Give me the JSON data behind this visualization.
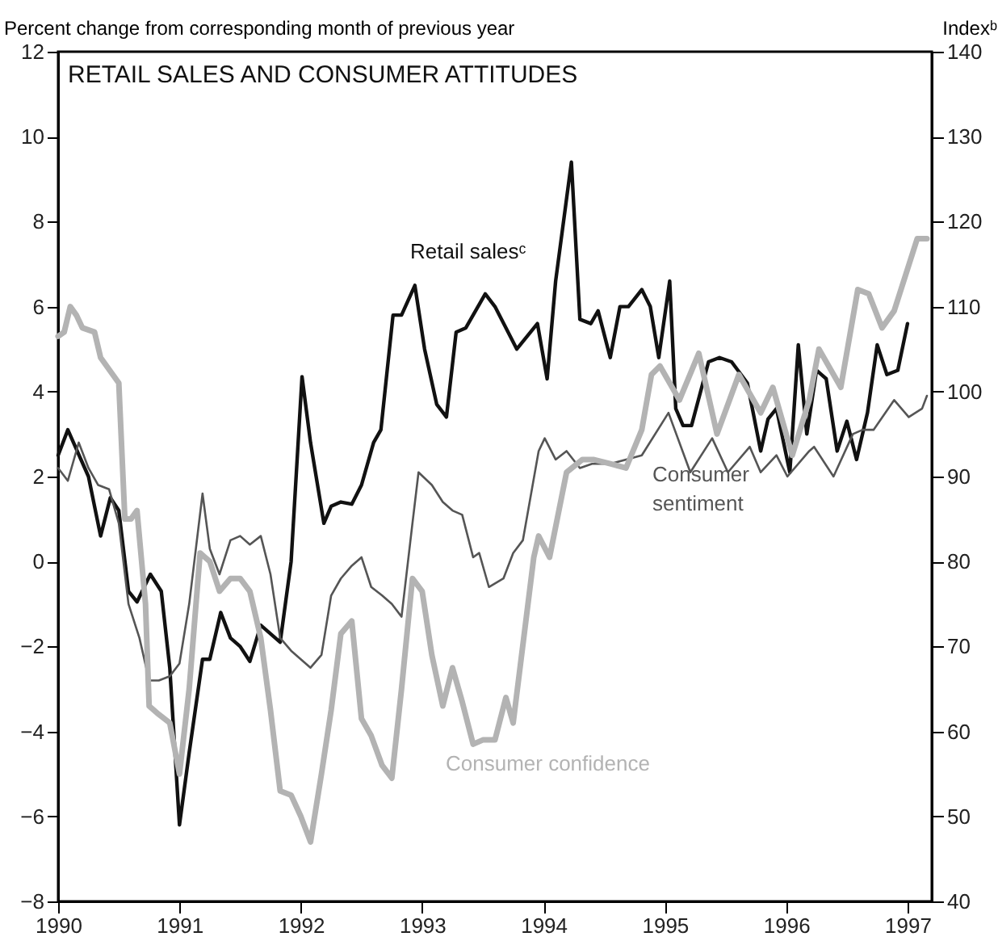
{
  "chart_data": {
    "type": "line",
    "title": "RETAIL SALES AND CONSUMER ATTITUDES",
    "ylabel": "Percent change from corresponding month of previous year",
    "y2label": "Indexᵇ",
    "xlim": [
      1990,
      1997.2
    ],
    "xticks": [
      1990,
      1991,
      1992,
      1993,
      1994,
      1995,
      1996,
      1997
    ],
    "ylim": [
      -8,
      12
    ],
    "yticks": [
      -8,
      -6,
      -4,
      -2,
      0,
      2,
      4,
      6,
      8,
      10,
      12
    ],
    "y2lim": [
      40,
      140
    ],
    "y2ticks": [
      40,
      50,
      60,
      70,
      80,
      90,
      100,
      110,
      120,
      130,
      140
    ],
    "series": [
      {
        "name": "Retail salesᶜ",
        "color": "#111111",
        "x": [
          1990,
          1990.08,
          1990.25,
          1990.35,
          1990.43,
          1990.5,
          1990.58,
          1990.65,
          1990.76,
          1990.85,
          1990.92,
          1991,
          1991.08,
          1991.19,
          1991.25,
          1991.34,
          1991.42,
          1991.5,
          1991.58,
          1991.67,
          1991.75,
          1991.83,
          1991.92,
          1992.01,
          1992.08,
          1992.19,
          1992.25,
          1992.33,
          1992.42,
          1992.5,
          1992.6,
          1992.66,
          1992.76,
          1992.83,
          1992.94,
          1993.02,
          1993.12,
          1993.2,
          1993.28,
          1993.36,
          1993.52,
          1993.6,
          1993.78,
          1993.95,
          1994.03,
          1994.1,
          1994.23,
          1994.3,
          1994.39,
          1994.45,
          1994.55,
          1994.63,
          1994.7,
          1994.81,
          1994.88,
          1994.95,
          1995.04,
          1995.09,
          1995.15,
          1995.22,
          1995.36,
          1995.45,
          1995.55,
          1995.68,
          1995.79,
          1995.85,
          1995.92,
          1996.03,
          1996.1,
          1996.17,
          1996.25,
          1996.33,
          1996.42,
          1996.5,
          1996.58,
          1996.67,
          1996.75,
          1996.83,
          1996.92,
          1997
        ],
        "values": [
          2.5,
          3.1,
          2,
          0.6,
          1.5,
          1.2,
          -0.7,
          -0.95,
          -0.3,
          -0.7,
          -2.5,
          -6.2,
          -4.5,
          -2.3,
          -2.3,
          -1.2,
          -1.8,
          -2,
          -2.35,
          -1.5,
          -1.7,
          -1.9,
          0,
          4.35,
          2.8,
          0.9,
          1.3,
          1.4,
          1.35,
          1.8,
          2.8,
          3.1,
          5.8,
          5.8,
          6.5,
          5,
          3.7,
          3.4,
          5.4,
          5.5,
          6.3,
          6,
          5,
          5.6,
          4.3,
          6.6,
          9.4,
          5.7,
          5.6,
          5.9,
          4.8,
          6,
          6,
          6.4,
          6,
          4.8,
          6.6,
          3.6,
          3.2,
          3.2,
          4.7,
          4.8,
          4.7,
          4.2,
          2.6,
          3.35,
          3.6,
          2.1,
          5.1,
          3,
          4.5,
          4.3,
          2.6,
          3.3,
          2.4,
          3.5,
          5.1,
          4.4,
          4.5,
          5.6
        ]
      },
      {
        "name": "Consumer sentiment",
        "color": "#555555",
        "axis": "y2",
        "x": [
          1990,
          1990.08,
          1990.17,
          1990.25,
          1990.33,
          1990.42,
          1990.5,
          1990.58,
          1990.67,
          1990.75,
          1990.83,
          1990.92,
          1991,
          1991.08,
          1991.19,
          1991.25,
          1991.33,
          1991.42,
          1991.5,
          1991.58,
          1991.67,
          1991.75,
          1991.83,
          1991.92,
          1992,
          1992.08,
          1992.17,
          1992.25,
          1992.33,
          1992.42,
          1992.5,
          1992.58,
          1992.67,
          1992.75,
          1992.83,
          1992.92,
          1992.97,
          1993.08,
          1993.17,
          1993.25,
          1993.33,
          1993.42,
          1993.47,
          1993.55,
          1993.67,
          1993.75,
          1993.83,
          1993.96,
          1994.01,
          1994.1,
          1994.19,
          1994.3,
          1994.4,
          1994.55,
          1994.81,
          1995.03,
          1995.21,
          1995.39,
          1995.52,
          1995.7,
          1995.79,
          1995.92,
          1996.01,
          1996.19,
          1996.23,
          1996.39,
          1996.55,
          1996.63,
          1996.72,
          1996.89,
          1997.01,
          1997.12,
          1997.16
        ],
        "values": [
          91,
          89.5,
          94,
          91,
          89,
          88.5,
          84.5,
          75,
          71,
          66,
          66,
          66.5,
          68,
          75,
          88,
          81.5,
          78.5,
          82.5,
          83,
          82,
          83,
          78.5,
          71,
          69.5,
          68.5,
          67.5,
          69,
          76,
          78,
          79.5,
          80.5,
          77,
          76,
          75,
          73.5,
          84.5,
          90.5,
          89,
          87,
          86,
          85.5,
          80.5,
          81,
          77,
          78,
          81,
          82.5,
          93,
          94.5,
          92,
          93,
          91,
          91.5,
          91.5,
          92.5,
          97.5,
          90.5,
          94.5,
          90.5,
          93.5,
          90.5,
          92.5,
          90,
          93,
          93.5,
          90,
          95,
          95.5,
          95.5,
          99,
          97,
          98,
          99.5
        ]
      },
      {
        "name": "Consumer confidence",
        "color": "#b3b3b3",
        "axis": "y2",
        "x": [
          1990,
          1990.05,
          1990.1,
          1990.15,
          1990.2,
          1990.3,
          1990.35,
          1990.45,
          1990.5,
          1990.55,
          1990.6,
          1990.65,
          1990.72,
          1990.75,
          1990.83,
          1990.92,
          1991,
          1991.08,
          1991.17,
          1991.25,
          1991.33,
          1991.42,
          1991.5,
          1991.58,
          1991.67,
          1991.75,
          1991.83,
          1991.92,
          1992,
          1992.08,
          1992.17,
          1992.25,
          1992.33,
          1992.42,
          1992.5,
          1992.58,
          1992.67,
          1992.75,
          1992.83,
          1992.92,
          1993,
          1993.08,
          1993.17,
          1993.25,
          1993.33,
          1993.42,
          1993.5,
          1993.6,
          1993.69,
          1993.75,
          1993.92,
          1993.96,
          1994.05,
          1994.19,
          1994.32,
          1994.41,
          1994.55,
          1994.68,
          1994.81,
          1994.89,
          1994.96,
          1995.12,
          1995.28,
          1995.43,
          1995.61,
          1995.79,
          1995.89,
          1996.05,
          1996.19,
          1996.27,
          1996.45,
          1996.59,
          1996.68,
          1996.79,
          1996.89,
          1997.08,
          1997.16
        ],
        "values": [
          106.5,
          107,
          110,
          109,
          107.5,
          107,
          104,
          102,
          101,
          85,
          85,
          86,
          75,
          63,
          62,
          61,
          55,
          65,
          81,
          80,
          76.5,
          78,
          78,
          76.5,
          71,
          62.5,
          53,
          52.5,
          50,
          47,
          55,
          62.5,
          71.5,
          73,
          61.5,
          59.5,
          56,
          54.5,
          65,
          78,
          76.5,
          69,
          63,
          67.5,
          63.5,
          58.5,
          59,
          59,
          64,
          61,
          80.5,
          83,
          80.5,
          90.5,
          92,
          92,
          91.5,
          91,
          95.5,
          102,
          103,
          99,
          104.5,
          95,
          102,
          97.5,
          100.5,
          92.5,
          99,
          105,
          100.5,
          112,
          111.5,
          107.5,
          109.5,
          118,
          118
        ]
      }
    ]
  }
}
